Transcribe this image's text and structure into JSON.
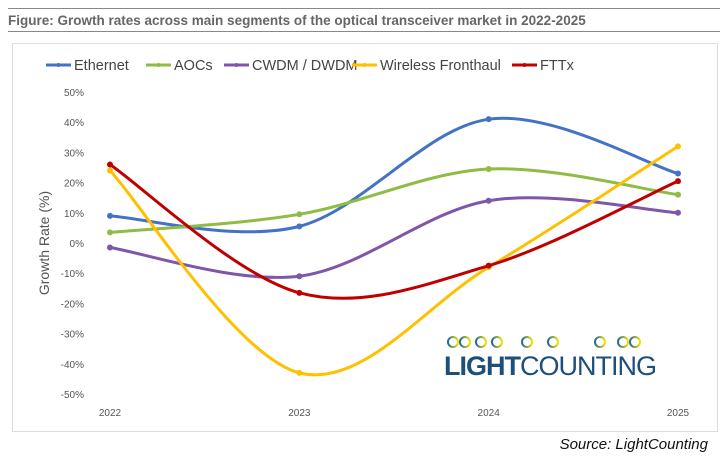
{
  "figure_title": "Figure: Growth rates across main segments of the optical transceiver market in 2022-2025",
  "source": "Source: LightCounting",
  "logo_text": "LIGHTCOUNTING",
  "chart_data": {
    "type": "line",
    "title": "",
    "xlabel": "",
    "ylabel": "Growth Rate (%)",
    "x": [
      "2022",
      "2023",
      "2024",
      "2025"
    ],
    "ylim": [
      -50,
      50
    ],
    "yticks": [
      -50,
      -40,
      -30,
      -20,
      -10,
      0,
      10,
      20,
      30,
      40,
      50
    ],
    "ytick_labels": [
      "-50%",
      "-40%",
      "-30%",
      "-20%",
      "-10%",
      "0%",
      "10%",
      "20%",
      "30%",
      "40%",
      "50%"
    ],
    "legend_placement": "top",
    "smoothed": true,
    "series": [
      {
        "name": "Ethernet",
        "color": "#4472c4",
        "values": [
          9,
          5.5,
          41,
          23
        ]
      },
      {
        "name": "AOCs",
        "color": "#8fbc45",
        "values": [
          3.5,
          9.5,
          24.5,
          16
        ]
      },
      {
        "name": "CWDM / DWDM",
        "color": "#7e57a8",
        "values": [
          -1.5,
          -11,
          14,
          10
        ]
      },
      {
        "name": "Wireless Fronthaul",
        "color": "#ffc000",
        "values": [
          24,
          -43,
          -8,
          32
        ]
      },
      {
        "name": "FTTx",
        "color": "#c00000",
        "values": [
          26,
          -16.5,
          -7.5,
          20.5
        ]
      }
    ]
  }
}
